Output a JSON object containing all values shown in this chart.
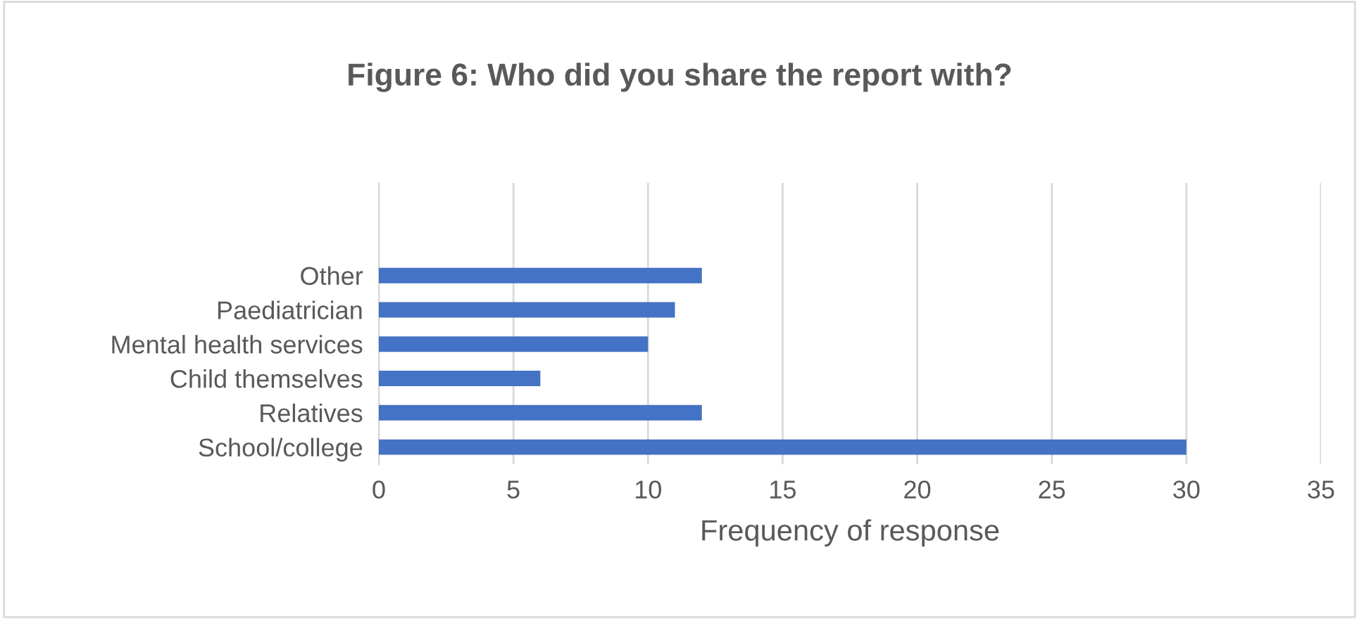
{
  "chart_data": {
    "type": "bar",
    "orientation": "horizontal",
    "title": "Figure 6: Who did you share the report with?",
    "categories": [
      "Other",
      "Paediatrician",
      "Mental health services",
      "Child themselves",
      "Relatives",
      "School/college"
    ],
    "values": [
      12,
      11,
      10,
      6,
      12,
      30
    ],
    "color": "#4472c4",
    "xlim": [
      0,
      35
    ],
    "xticks": [
      0,
      5,
      10,
      15,
      20,
      25,
      30,
      35
    ],
    "xlabel": "Frequency of response",
    "grid": "x",
    "legend": false
  }
}
